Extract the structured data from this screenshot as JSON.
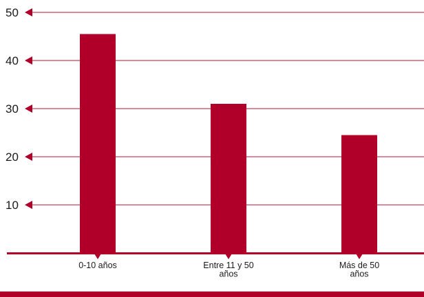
{
  "colors": {
    "accent": "#b0002a",
    "gridline": "#c0455f",
    "text": "#1a1a1a",
    "background": "#ffffff"
  },
  "chart_data": {
    "type": "bar",
    "title": "",
    "xlabel": "",
    "ylabel": "",
    "ylim": [
      0,
      50
    ],
    "yticks": [
      10,
      20,
      30,
      40,
      50
    ],
    "grid": true,
    "legend": "none",
    "categories": [
      [
        "0-10 años"
      ],
      [
        "Entre 11 y 50",
        "años"
      ],
      [
        "Más de 50",
        "años"
      ]
    ],
    "values": [
      45.5,
      31,
      24.5
    ]
  }
}
